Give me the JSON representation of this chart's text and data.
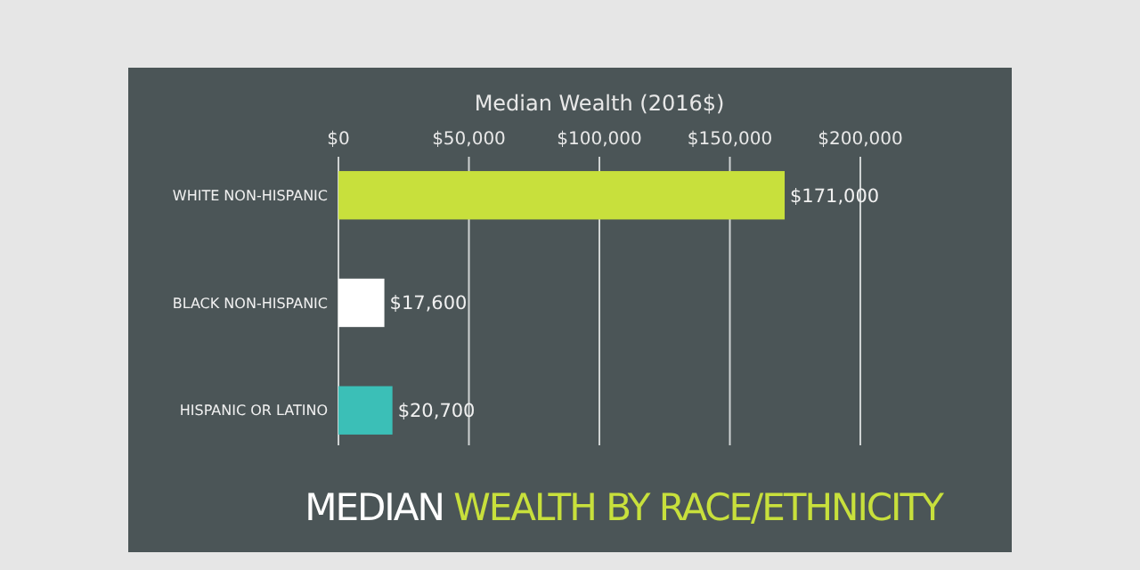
{
  "chart_data": {
    "type": "bar",
    "orientation": "horizontal",
    "title": "MEDIAN WEALTH BY RACE/ETHNICITY",
    "xlabel": "Median Wealth (2016$)",
    "categories": [
      "WHITE NON-HISPANIC",
      "BLACK NON-HISPANIC",
      "HISPANIC OR LATINO"
    ],
    "values": [
      171000,
      17600,
      20700
    ],
    "colors": [
      "#c8e03c",
      "#ffffff",
      "#3bbfb7"
    ],
    "value_labels": [
      "$171,000",
      "$17,600",
      "$20,700"
    ],
    "xlim": [
      0,
      200000
    ],
    "xticks": [
      {
        "value": 0,
        "label": "$0"
      },
      {
        "value": 50000,
        "label": "$50,000"
      },
      {
        "value": 100000,
        "label": "$100,000"
      },
      {
        "value": 150000,
        "label": "$150,000"
      },
      {
        "value": 200000,
        "label": "$200,000"
      }
    ],
    "grid": "x"
  }
}
